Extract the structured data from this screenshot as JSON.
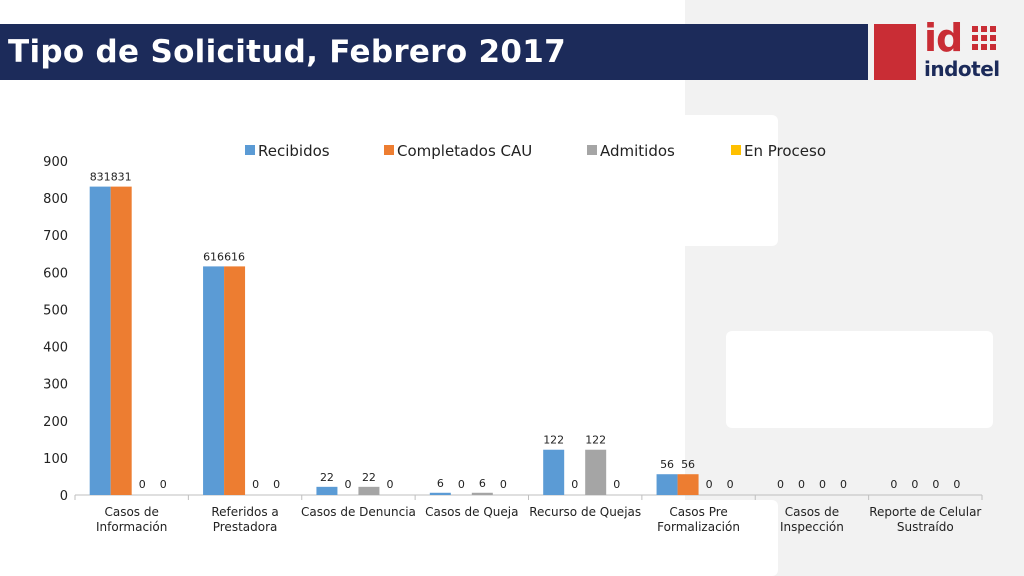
{
  "header": {
    "title": "Tipo de Solicitud, Febrero 2017",
    "logo_mark": "id",
    "logo_name": "indotel"
  },
  "colors": {
    "title_bar": "#1c2b5a",
    "logo_red": "#c92d35",
    "side_panel": "#f2f2f2"
  },
  "chart_data": {
    "type": "bar",
    "title": "",
    "xlabel": "",
    "ylabel": "",
    "ylim": [
      0,
      900
    ],
    "y_ticks": [
      0,
      100,
      200,
      300,
      400,
      500,
      600,
      700,
      800,
      900
    ],
    "grid": false,
    "legend_position": "top",
    "categories": [
      [
        "Casos de",
        "Información"
      ],
      [
        "Referidos a",
        "Prestadora"
      ],
      [
        "Casos de Denuncia"
      ],
      [
        "Casos de Queja"
      ],
      [
        "Recurso de Quejas"
      ],
      [
        "Casos Pre",
        "Formalización"
      ],
      [
        "Casos de",
        "Inspección"
      ],
      [
        "Reporte de Celular",
        "Sustraído"
      ]
    ],
    "series": [
      {
        "name": "Recibidos",
        "color": "#5b9bd5",
        "values": [
          831,
          616,
          22,
          6,
          122,
          56,
          0,
          0
        ]
      },
      {
        "name": "Completados CAU",
        "color": "#ed7d31",
        "values": [
          831,
          616,
          0,
          0,
          0,
          56,
          0,
          0
        ]
      },
      {
        "name": "Admitidos",
        "color": "#a5a5a5",
        "values": [
          0,
          0,
          22,
          6,
          122,
          0,
          0,
          0
        ]
      },
      {
        "name": "En Proceso",
        "color": "#ffc000",
        "values": [
          0,
          0,
          0,
          0,
          0,
          0,
          0,
          0
        ]
      }
    ]
  }
}
